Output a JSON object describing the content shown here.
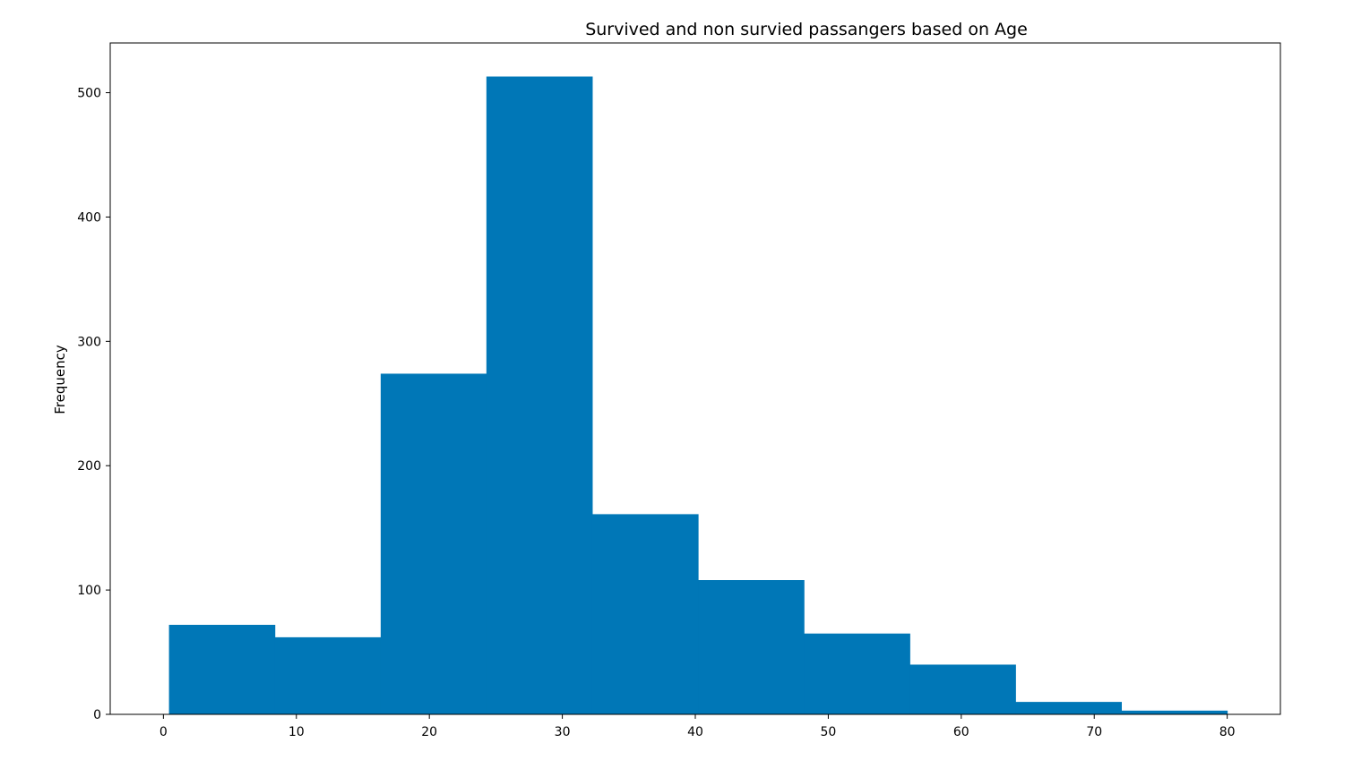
{
  "chart_data": {
    "type": "bar",
    "title": "Survived and non survied passangers based on Age",
    "xlabel": "",
    "ylabel": "Frequency",
    "xlim": [
      -4,
      84
    ],
    "ylim": [
      0,
      540
    ],
    "xticks": [
      0,
      10,
      20,
      30,
      40,
      50,
      60,
      70,
      80
    ],
    "yticks": [
      0,
      100,
      200,
      300,
      400,
      500
    ],
    "grid": false,
    "bar_color": "#0077b7",
    "bins": [
      {
        "x0": 0.42,
        "x1": 8.38,
        "value": 72
      },
      {
        "x0": 8.38,
        "x1": 16.34,
        "value": 62
      },
      {
        "x0": 16.34,
        "x1": 24.29,
        "value": 274
      },
      {
        "x0": 24.29,
        "x1": 32.25,
        "value": 513
      },
      {
        "x0": 32.25,
        "x1": 40.21,
        "value": 161
      },
      {
        "x0": 40.21,
        "x1": 48.17,
        "value": 108
      },
      {
        "x0": 48.17,
        "x1": 56.13,
        "value": 65
      },
      {
        "x0": 56.13,
        "x1": 64.08,
        "value": 40
      },
      {
        "x0": 64.08,
        "x1": 72.04,
        "value": 10
      },
      {
        "x0": 72.04,
        "x1": 80.0,
        "value": 3
      }
    ]
  }
}
